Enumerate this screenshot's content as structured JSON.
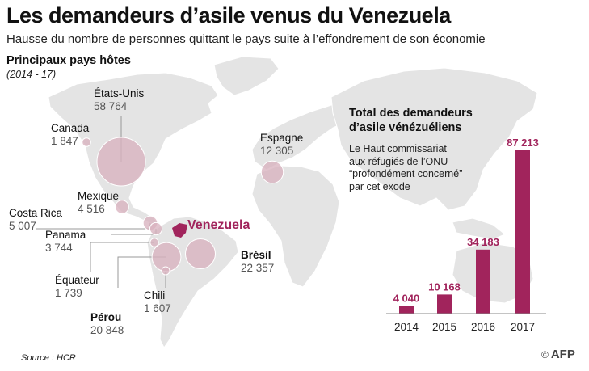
{
  "header": {
    "title": "Les demandeurs d’asile venus du Venezuela",
    "subtitle": "Hausse du nombre de personnes quittant le pays suite à l’effondrement de son économie",
    "section_title": "Principaux pays hôtes",
    "period": "(2014 - 17)"
  },
  "colors": {
    "accent": "#a1245c",
    "bubble": "#d8b2bf",
    "land": "#e4e4e4",
    "leader": "#999999"
  },
  "map": {
    "origin_label": "Venezuela",
    "host_countries": [
      {
        "name": "États-Unis",
        "value": "58 764",
        "amount": 58764,
        "bold": false
      },
      {
        "name": "Canada",
        "value": "1 847",
        "amount": 1847,
        "bold": false
      },
      {
        "name": "Mexique",
        "value": "4 516",
        "amount": 4516,
        "bold": false
      },
      {
        "name": "Costa Rica",
        "value": "5 007",
        "amount": 5007,
        "bold": false
      },
      {
        "name": "Panama",
        "value": "3 744",
        "amount": 3744,
        "bold": false
      },
      {
        "name": "Équateur",
        "value": "1 739",
        "amount": 1739,
        "bold": false
      },
      {
        "name": "Pérou",
        "value": "20 848",
        "amount": 20848,
        "bold": true
      },
      {
        "name": "Chili",
        "value": "1 607",
        "amount": 1607,
        "bold": false
      },
      {
        "name": "Brésil",
        "value": "22 357",
        "amount": 22357,
        "bold": true
      },
      {
        "name": "Espagne",
        "value": "12 305",
        "amount": 12305,
        "bold": false
      }
    ]
  },
  "totals": {
    "title_line1": "Total des demandeurs",
    "title_line2": "d’asile vénézuéliens",
    "note_lines": [
      "Le Haut commissariat",
      "aux réfugiés de l’ONU",
      "“profondément concerné”",
      "par cet exode"
    ]
  },
  "chart_data": {
    "type": "bar",
    "categories": [
      "2014",
      "2015",
      "2016",
      "2017"
    ],
    "values": [
      4040,
      10168,
      34183,
      87213
    ],
    "value_labels": [
      "4 040",
      "10 168",
      "34 183",
      "87 213"
    ],
    "title": "Total des demandeurs d’asile vénézuéliens",
    "ylim": [
      0,
      87213
    ],
    "grid": false,
    "bar_color": "#a1245c"
  },
  "footer": {
    "source": "Source : HCR",
    "logo_symbol": "©",
    "logo_text": "AFP"
  }
}
